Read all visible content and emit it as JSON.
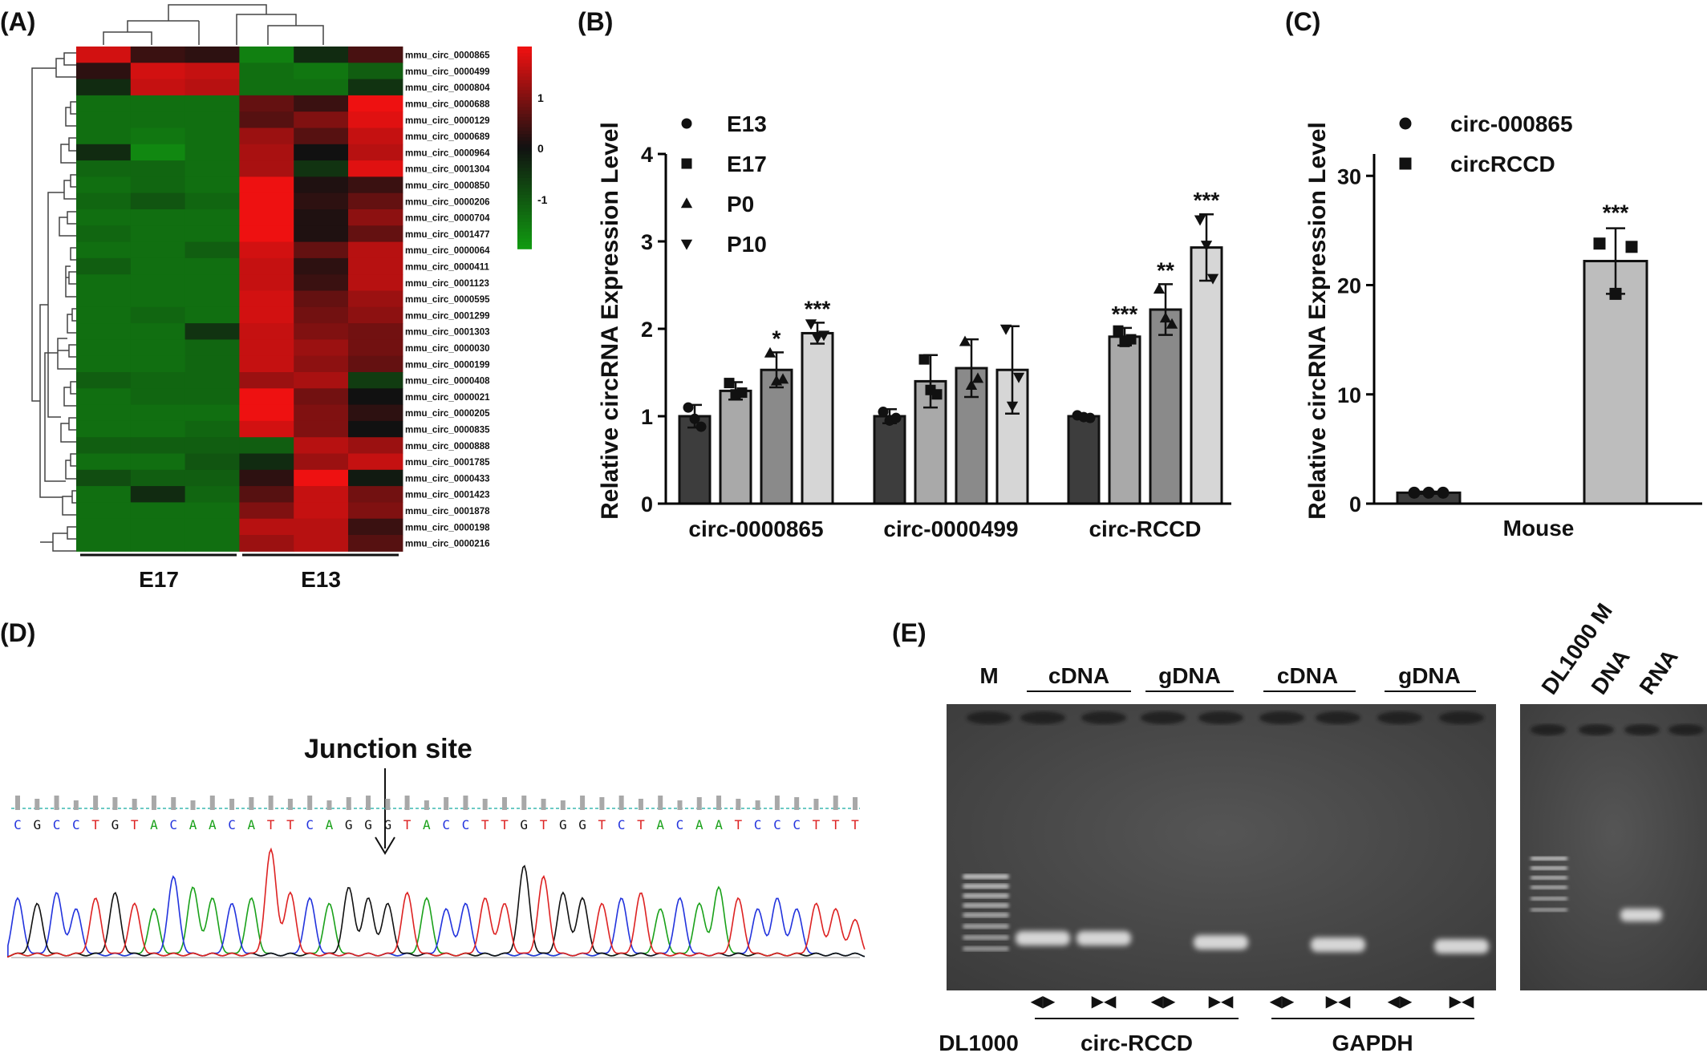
{
  "panels": {
    "a": "(A)",
    "b": "(B)",
    "c": "(C)",
    "d": "(D)",
    "e": "(E)"
  },
  "colors": {
    "heat_high": "#ee1111",
    "heat_mid": "#111111",
    "heat_low": "#119911",
    "bar_e13": "#3d3d3d",
    "bar_e17": "#a9a9a9",
    "bar_p0": "#8a8a8a",
    "bar_p10": "#d6d6d6",
    "gel_bg": "#4a4a4a"
  },
  "chart_data": [
    {
      "type": "heatmap",
      "panel": "(A)",
      "rows": [
        "mmu_circ_0000865",
        "mmu_circ_0000499",
        "mmu_circ_0000804",
        "mmu_circ_0000688",
        "mmu_circ_0000129",
        "mmu_circ_0000689",
        "mmu_circ_0000964",
        "mmu_circ_0001304",
        "mmu_circ_0000850",
        "mmu_circ_0000206",
        "mmu_circ_0000704",
        "mmu_circ_0001477",
        "mmu_circ_0000064",
        "mmu_circ_0000411",
        "mmu_circ_0001123",
        "mmu_circ_0000595",
        "mmu_circ_0001299",
        "mmu_circ_0001303",
        "mmu_circ_0000030",
        "mmu_circ_0000199",
        "mmu_circ_0000408",
        "mmu_circ_0000021",
        "mmu_circ_0000205",
        "mmu_circ_0000835",
        "mmu_circ_0000888",
        "mmu_circ_0001785",
        "mmu_circ_0000433",
        "mmu_circ_0001423",
        "mmu_circ_0001878",
        "mmu_circ_0000198",
        "mmu_circ_0000216"
      ],
      "groups": [
        "E17",
        "E13"
      ],
      "color_scale": {
        "ticks": [
          1,
          0,
          -1
        ],
        "range": [
          -1.6,
          1.6
        ]
      },
      "values": [
        [
          1.4,
          0.3,
          0.2,
          -1.3,
          -0.3,
          0.4
        ],
        [
          0.2,
          1.4,
          1.3,
          -1.1,
          -1.2,
          -0.9
        ],
        [
          -0.3,
          1.3,
          1.2,
          -1.1,
          -1.1,
          -0.4
        ],
        [
          -1.1,
          -1.1,
          -1.1,
          0.6,
          0.3,
          1.6
        ],
        [
          -1.1,
          -1.1,
          -1.1,
          0.5,
          0.8,
          1.5
        ],
        [
          -1.1,
          -1.2,
          -1.1,
          1.0,
          0.5,
          1.3
        ],
        [
          -0.3,
          -1.4,
          -1.1,
          1.1,
          0.0,
          1.2
        ],
        [
          -1.0,
          -1.0,
          -1.1,
          1.1,
          -0.4,
          1.5
        ],
        [
          -1.1,
          -1.0,
          -1.1,
          1.7,
          0.1,
          0.3
        ],
        [
          -1.0,
          -0.8,
          -1.0,
          1.7,
          0.2,
          0.6
        ],
        [
          -1.1,
          -1.1,
          -1.1,
          1.7,
          0.1,
          0.9
        ],
        [
          -1.0,
          -1.1,
          -1.1,
          1.7,
          0.1,
          0.6
        ],
        [
          -1.1,
          -1.1,
          -0.9,
          1.4,
          0.6,
          1.2
        ],
        [
          -0.9,
          -1.1,
          -1.1,
          1.3,
          0.2,
          1.2
        ],
        [
          -1.1,
          -1.1,
          -1.1,
          1.3,
          0.3,
          1.2
        ],
        [
          -1.1,
          -1.1,
          -1.1,
          1.4,
          0.6,
          1.0
        ],
        [
          -1.1,
          -1.0,
          -1.1,
          1.4,
          0.7,
          0.9
        ],
        [
          -1.1,
          -1.1,
          -0.4,
          1.3,
          0.8,
          0.7
        ],
        [
          -1.1,
          -1.1,
          -1.0,
          1.3,
          1.0,
          0.7
        ],
        [
          -1.1,
          -1.1,
          -1.0,
          1.3,
          0.9,
          0.6
        ],
        [
          -0.9,
          -1.0,
          -1.0,
          1.0,
          1.1,
          -0.5
        ],
        [
          -1.1,
          -1.0,
          -1.0,
          1.7,
          0.7,
          0.0
        ],
        [
          -1.1,
          -1.1,
          -1.1,
          1.6,
          0.8,
          0.2
        ],
        [
          -1.1,
          -1.1,
          -1.0,
          1.4,
          0.8,
          0.0
        ],
        [
          -0.9,
          -0.9,
          -0.9,
          -0.9,
          1.2,
          1.0
        ],
        [
          -1.1,
          -1.1,
          -0.8,
          -0.3,
          1.0,
          1.3
        ],
        [
          -0.7,
          -0.9,
          -0.9,
          0.2,
          1.8,
          -0.1
        ],
        [
          -1.1,
          -0.3,
          -1.0,
          0.5,
          1.3,
          0.7
        ],
        [
          -1.1,
          -1.1,
          -1.1,
          0.8,
          1.3,
          0.8
        ],
        [
          -1.1,
          -1.1,
          -1.1,
          1.2,
          1.2,
          0.3
        ],
        [
          -1.1,
          -1.1,
          -1.1,
          1.0,
          1.2,
          0.5
        ]
      ]
    },
    {
      "type": "bar",
      "panel": "(B)",
      "categories": [
        "circ-0000865",
        "circ-0000499",
        "circ-RCCD"
      ],
      "series": [
        {
          "name": "E13",
          "marker": "circle",
          "values": [
            1.0,
            1.0,
            1.0
          ],
          "errors": [
            0.13,
            0.08,
            0.02
          ],
          "points": [
            [
              1.1,
              0.97,
              0.88
            ],
            [
              1.05,
              0.95,
              0.98
            ],
            [
              1.01,
              0.99,
              0.98
            ]
          ]
        },
        {
          "name": "E17",
          "marker": "square",
          "values": [
            1.29,
            1.4,
            1.91
          ],
          "errors": [
            0.1,
            0.3,
            0.1
          ],
          "points": [
            [
              1.38,
              1.25,
              1.27
            ],
            [
              1.65,
              1.3,
              1.25
            ],
            [
              1.98,
              1.85,
              1.88
            ]
          ]
        },
        {
          "name": "P0",
          "marker": "triangle-up",
          "values": [
            1.53,
            1.55,
            2.22
          ],
          "errors": [
            0.2,
            0.33,
            0.29
          ],
          "points": [
            [
              1.72,
              1.4,
              1.42
            ],
            [
              1.85,
              1.35,
              1.43
            ],
            [
              2.45,
              2.12,
              2.05
            ]
          ]
        },
        {
          "name": "P10",
          "marker": "triangle-down",
          "values": [
            1.95,
            1.53,
            2.93
          ],
          "errors": [
            0.12,
            0.5,
            0.38
          ],
          "points": [
            [
              2.06,
              1.9,
              1.93
            ],
            [
              2.0,
              1.12,
              1.45
            ],
            [
              3.25,
              2.96,
              2.58
            ]
          ]
        }
      ],
      "significance": [
        [
          "",
          "",
          "*",
          "***"
        ],
        [
          "",
          "",
          "",
          ""
        ],
        [
          "",
          "***",
          "**",
          "***"
        ]
      ],
      "ylabel": "Relative circRNA Expression Level",
      "ylim": [
        0,
        4
      ],
      "yticks": [
        0,
        1,
        2,
        3,
        4
      ],
      "legend": "top-left"
    },
    {
      "type": "bar",
      "panel": "(C)",
      "categories": [
        "Mouse"
      ],
      "series": [
        {
          "name": "circ-000865",
          "marker": "circle",
          "values": [
            1.0
          ],
          "errors": [
            0.1
          ],
          "points": [
            [
              1.0,
              1.0,
              1.0
            ]
          ]
        },
        {
          "name": "circRCCD",
          "marker": "square",
          "values": [
            22.2
          ],
          "errors": [
            3.0
          ],
          "points": [
            [
              23.8,
              23.5,
              19.2
            ]
          ]
        }
      ],
      "significance": [
        [
          "",
          "***"
        ]
      ],
      "ylabel": "Relative circRNA Expression Level",
      "ylim": [
        0,
        32
      ],
      "yticks": [
        0,
        10,
        20,
        30
      ],
      "legend": "top-left"
    }
  ],
  "sequencing": {
    "label": "Junction site",
    "sequence": [
      "C",
      "G",
      "C",
      "C",
      "T",
      "G",
      "T",
      "A",
      "C",
      "A",
      "A",
      "C",
      "A",
      "T",
      "T",
      "C",
      "A",
      "G",
      "G",
      "G",
      "T",
      "A",
      "C",
      "C",
      "T",
      "T",
      "G",
      "T",
      "G",
      "G",
      "T",
      "C",
      "T",
      "A",
      "C",
      "A",
      "A",
      "T",
      "C",
      "C",
      "C",
      "T",
      "T",
      "T"
    ],
    "base_colors": {
      "A": "#1aa11a",
      "C": "#2233dd",
      "G": "#111111",
      "T": "#dd2222"
    },
    "peak_heights": [
      0.55,
      0.5,
      0.6,
      0.45,
      0.55,
      0.6,
      0.5,
      0.45,
      0.75,
      0.65,
      0.55,
      0.5,
      0.55,
      1.0,
      0.6,
      0.55,
      0.5,
      0.65,
      0.55,
      0.5,
      0.6,
      0.55,
      0.45,
      0.5,
      0.55,
      0.5,
      0.85,
      0.75,
      0.6,
      0.55,
      0.5,
      0.55,
      0.6,
      0.45,
      0.55,
      0.5,
      0.65,
      0.55,
      0.45,
      0.55,
      0.45,
      0.5,
      0.45,
      0.35
    ]
  },
  "gel": {
    "marker_label": "M",
    "group_labels": [
      "cDNA",
      "gDNA",
      "cDNA",
      "gDNA"
    ],
    "primer_glyphs": [
      "◀▶",
      "▶◀",
      "◀▶",
      "▶◀",
      "◀▶",
      "▶◀",
      "◀▶",
      "▶◀"
    ],
    "bottom_labels": {
      "ladder": "DL1000",
      "gene1": "circ-RCCD",
      "gene2": "GAPDH"
    },
    "right_lane_labels": [
      "DL1000 M",
      "DNA",
      "RNA"
    ]
  }
}
